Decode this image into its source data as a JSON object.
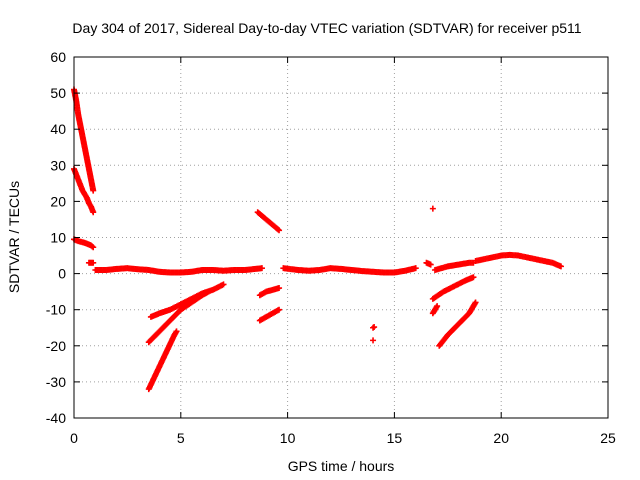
{
  "chart_data": {
    "type": "scatter",
    "title": "Day 304 of 2017, Sidereal Day-to-day VTEC variation (SDTVAR) for receiver p511",
    "xlabel": "GPS time / hours",
    "ylabel": "SDTVAR / TECUs",
    "xlim": [
      0,
      25
    ],
    "ylim": [
      -40,
      60
    ],
    "xticks": [
      0,
      5,
      10,
      15,
      20,
      25
    ],
    "yticks": [
      -40,
      -30,
      -20,
      -10,
      0,
      10,
      20,
      30,
      40,
      50,
      60
    ],
    "xtick_labels": [
      "0",
      "5",
      "10",
      "15",
      "20",
      "25"
    ],
    "ytick_labels": [
      "-40",
      "-30",
      "-20",
      "-10",
      "0",
      "10",
      "20",
      "30",
      "40",
      "50",
      "60"
    ],
    "grid": true,
    "marker": "+",
    "color": "#ff0000",
    "segments": [
      {
        "x": [
          0.0,
          0.1,
          0.2,
          0.3,
          0.4,
          0.5,
          0.6,
          0.7,
          0.8,
          0.9
        ],
        "y": [
          51,
          48,
          44,
          41,
          38,
          35,
          32,
          29,
          26,
          23
        ]
      },
      {
        "x": [
          0.0,
          0.1,
          0.2,
          0.3,
          0.4,
          0.5,
          0.6,
          0.7,
          0.8,
          0.9
        ],
        "y": [
          29,
          27.5,
          26,
          24.5,
          23,
          22,
          21,
          19.5,
          18.5,
          17
        ]
      },
      {
        "x": [
          0.0,
          0.2,
          0.4,
          0.6,
          0.8,
          0.9
        ],
        "y": [
          9.5,
          9,
          8.7,
          8.3,
          7.8,
          7.3
        ]
      },
      {
        "x": [
          0.7,
          0.8,
          0.9
        ],
        "y": [
          3,
          3,
          3
        ]
      },
      {
        "x": [
          1.0,
          1.5,
          2.0,
          2.5,
          3.0,
          3.5,
          4.0,
          4.5,
          5.0,
          5.5,
          6.0,
          6.5,
          7.0,
          7.5,
          8.0,
          8.5,
          8.8
        ],
        "y": [
          1,
          1,
          1.3,
          1.5,
          1.2,
          1,
          0.5,
          0.3,
          0.3,
          0.5,
          1,
          1,
          0.8,
          1,
          1,
          1.3,
          1.5
        ]
      },
      {
        "x": [
          3.6,
          4.0,
          4.5,
          5.0,
          5.5,
          6.0,
          6.5,
          7.0
        ],
        "y": [
          -12,
          -11,
          -10,
          -8.5,
          -7,
          -5.5,
          -4.5,
          -3
        ]
      },
      {
        "x": [
          3.5,
          4.0,
          4.5,
          5.0,
          5.5,
          6.0,
          6.3
        ],
        "y": [
          -19,
          -16,
          -13,
          -10,
          -8,
          -6,
          -5
        ]
      },
      {
        "x": [
          3.5,
          3.7,
          3.9,
          4.1,
          4.3,
          4.5,
          4.7,
          4.8
        ],
        "y": [
          -32,
          -29.5,
          -27,
          -24.5,
          -22,
          -19.5,
          -17,
          -16
        ]
      },
      {
        "x": [
          8.6,
          8.8,
          9.0,
          9.2,
          9.4,
          9.6
        ],
        "y": [
          17,
          16,
          15,
          14,
          13,
          12
        ]
      },
      {
        "x": [
          8.7,
          9.0,
          9.3,
          9.6
        ],
        "y": [
          -6,
          -5,
          -4.5,
          -4
        ]
      },
      {
        "x": [
          8.7,
          9.0,
          9.3,
          9.6
        ],
        "y": [
          -13,
          -12,
          -11,
          -10
        ]
      },
      {
        "x": [
          9.8,
          10.2,
          10.5,
          11.0,
          11.5,
          12.0,
          12.5,
          13.0,
          13.5,
          14.0,
          14.5,
          15.0,
          15.5,
          16.0
        ],
        "y": [
          1.5,
          1.2,
          1,
          0.8,
          1,
          1.5,
          1.3,
          1,
          0.7,
          0.5,
          0.3,
          0.3,
          0.8,
          1.5
        ]
      },
      {
        "x": [
          14.0,
          14.05
        ],
        "y": [
          -15,
          -14.8
        ]
      },
      {
        "x": [
          14.0
        ],
        "y": [
          -18.5
        ]
      },
      {
        "x": [
          16.5,
          16.7
        ],
        "y": [
          3,
          2.5
        ]
      },
      {
        "x": [
          16.8
        ],
        "y": [
          18
        ]
      },
      {
        "x": [
          16.9,
          17.5,
          18.0,
          18.5,
          18.7
        ],
        "y": [
          1,
          2,
          2.5,
          3,
          3
        ]
      },
      {
        "x": [
          16.8,
          17.3,
          17.8,
          18.3,
          18.7
        ],
        "y": [
          -7,
          -5,
          -3.5,
          -2,
          -1
        ]
      },
      {
        "x": [
          16.8,
          17.0
        ],
        "y": [
          -11,
          -9
        ]
      },
      {
        "x": [
          17.1,
          17.5,
          18.0,
          18.5,
          18.8
        ],
        "y": [
          -20,
          -17,
          -14,
          -11,
          -8
        ]
      },
      {
        "x": [
          18.8,
          19.2,
          19.6,
          20.0,
          20.4,
          20.8,
          21.2,
          21.6,
          22.0,
          22.4,
          22.8
        ],
        "y": [
          3.5,
          4,
          4.5,
          5,
          5.2,
          5,
          4.5,
          4,
          3.5,
          3,
          2
        ]
      }
    ]
  }
}
